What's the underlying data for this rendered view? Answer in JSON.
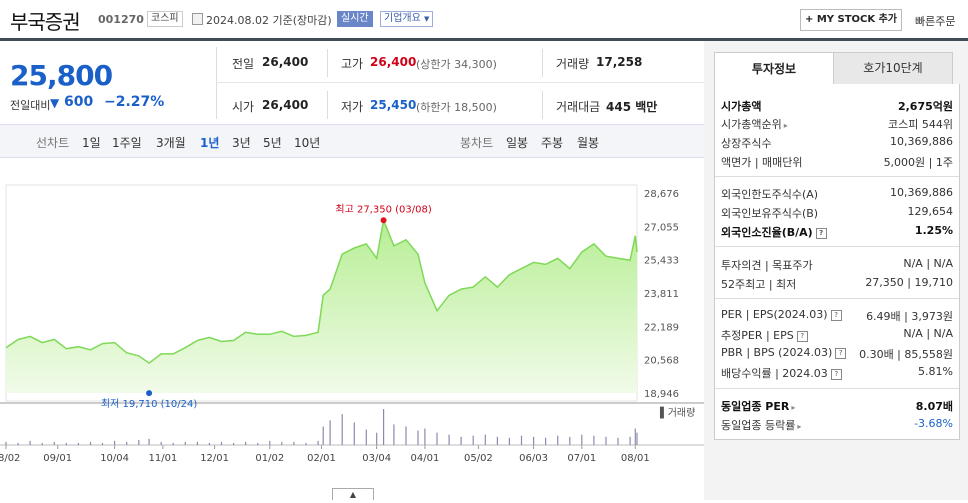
{
  "header": {
    "stock_name": "부국증권",
    "stock_code": "001270",
    "market": "코스피",
    "date_info": "2024.08.02  기준(장마감)",
    "realtime": "실시간",
    "company_info": "기업개요",
    "my_stock": "+ MY STOCK 추가",
    "quick_order": "빠른주문"
  },
  "price": {
    "current": "25,800",
    "change_label": "전일대비",
    "change_value": "600",
    "change_rate": "−2.27%",
    "prev_close_label": "전일",
    "prev_close": "26,400",
    "high_label": "고가",
    "high": "26,400",
    "upper_limit": "(상한가 34,300)",
    "volume_label": "거래량",
    "volume": "17,258",
    "open_label": "시가",
    "open": "26,400",
    "low_label": "저가",
    "low": "25,450",
    "lower_limit": "(하한가 18,500)",
    "amount_label": "거래대금",
    "amount": "445 백만"
  },
  "periods": {
    "line_label": "선차트",
    "line_items": [
      "1일",
      "1주일",
      "3개월",
      "1년",
      "3년",
      "5년",
      "10년"
    ],
    "active": "1년",
    "candle_label": "봉차트",
    "candle_items": [
      "일봉",
      "주봉",
      "월봉"
    ]
  },
  "chart_data": {
    "type": "area",
    "title": "",
    "y_ticks": [
      "28,676",
      "27,055",
      "25,433",
      "23,811",
      "22,189",
      "20,568",
      "18,946"
    ],
    "ylim": [
      18946,
      28676
    ],
    "x_ticks": [
      "08/02",
      "09/01",
      "10/04",
      "11/01",
      "12/01",
      "01/02",
      "02/01",
      "03/04",
      "04/01",
      "05/02",
      "06/03",
      "07/01",
      "08/01"
    ],
    "high_label": "최고 27,350 (03/08)",
    "low_label": "최저 19,710 (10/24)",
    "volume_legend": "거래량",
    "accent": "#7ed957",
    "x": [
      "08/02",
      "08/09",
      "08/16",
      "08/23",
      "08/30",
      "09/06",
      "09/13",
      "09/20",
      "09/27",
      "10/04",
      "10/11",
      "10/18",
      "10/24",
      "10/31",
      "11/07",
      "11/14",
      "11/21",
      "11/28",
      "12/05",
      "12/12",
      "12/19",
      "12/26",
      "01/02",
      "01/09",
      "01/16",
      "01/23",
      "01/30",
      "02/02",
      "02/06",
      "02/13",
      "02/20",
      "02/27",
      "03/04",
      "03/08",
      "03/14",
      "03/21",
      "03/28",
      "04/01",
      "04/08",
      "04/15",
      "04/22",
      "04/29",
      "05/06",
      "05/13",
      "05/20",
      "05/27",
      "06/03",
      "06/10",
      "06/17",
      "06/24",
      "07/01",
      "07/08",
      "07/15",
      "07/22",
      "07/29",
      "08/01",
      "08/02"
    ],
    "y": [
      21150,
      21550,
      21700,
      21400,
      21550,
      21100,
      21200,
      21050,
      21350,
      21400,
      20900,
      20750,
      20400,
      20850,
      20850,
      21150,
      21500,
      21650,
      21450,
      21500,
      21900,
      21800,
      21800,
      21950,
      21700,
      21750,
      21900,
      23700,
      24000,
      25700,
      26000,
      26200,
      25500,
      27350,
      26100,
      26400,
      25700,
      24300,
      22950,
      23700,
      24000,
      24100,
      24600,
      24100,
      24700,
      25000,
      25300,
      25200,
      25500,
      25000,
      25800,
      26200,
      25600,
      25500,
      25400,
      26600,
      25800
    ],
    "volume": [
      3,
      2,
      4,
      2,
      3,
      2,
      2,
      3,
      2,
      4,
      3,
      5,
      6,
      3,
      2,
      3,
      3,
      2,
      3,
      2,
      3,
      2,
      4,
      3,
      3,
      2,
      4,
      18,
      24,
      30,
      22,
      15,
      12,
      35,
      20,
      18,
      14,
      16,
      12,
      10,
      8,
      9,
      10,
      8,
      7,
      9,
      8,
      7,
      9,
      8,
      10,
      9,
      8,
      7,
      8,
      16,
      12
    ]
  },
  "right_panel": {
    "tab_invest": "투자정보",
    "tab_hoga": "호가10단계",
    "rows": [
      {
        "label": "시가총액",
        "value": "2,675억원",
        "bold": true
      },
      {
        "label": "시가총액순위",
        "value": "코스피 544위"
      },
      {
        "label": "상장주식수",
        "value": "10,369,886"
      },
      {
        "label": "액면가 | 매매단위",
        "value": "5,000원  |  1주"
      },
      {
        "label": "외국인한도주식수(A)",
        "value": "10,369,886"
      },
      {
        "label": "외국인보유주식수(B)",
        "value": "129,654"
      },
      {
        "label": "외국인소진율(B/A)",
        "value": "1.25%",
        "bold": true
      },
      {
        "label": "투자의견  |  목표주가",
        "value": "N/A  |  N/A"
      },
      {
        "label": "52주최고  |  최저",
        "value": "27,350  |  19,710"
      },
      {
        "label": "PER  |  EPS(2024.03)",
        "value": "6.49배  |  3,973원"
      },
      {
        "label": "추정PER  |  EPS",
        "value": "N/A  |  N/A"
      },
      {
        "label": "PBR  |  BPS (2024.03)",
        "value": "0.30배  |  85,558원"
      },
      {
        "label": "배당수익률  |  2024.03",
        "value": "5.81%"
      },
      {
        "label": "동일업종 PER",
        "value": "8.07배",
        "bold": true
      },
      {
        "label": "동일업종 등락률",
        "value": "-3.68%"
      }
    ]
  }
}
